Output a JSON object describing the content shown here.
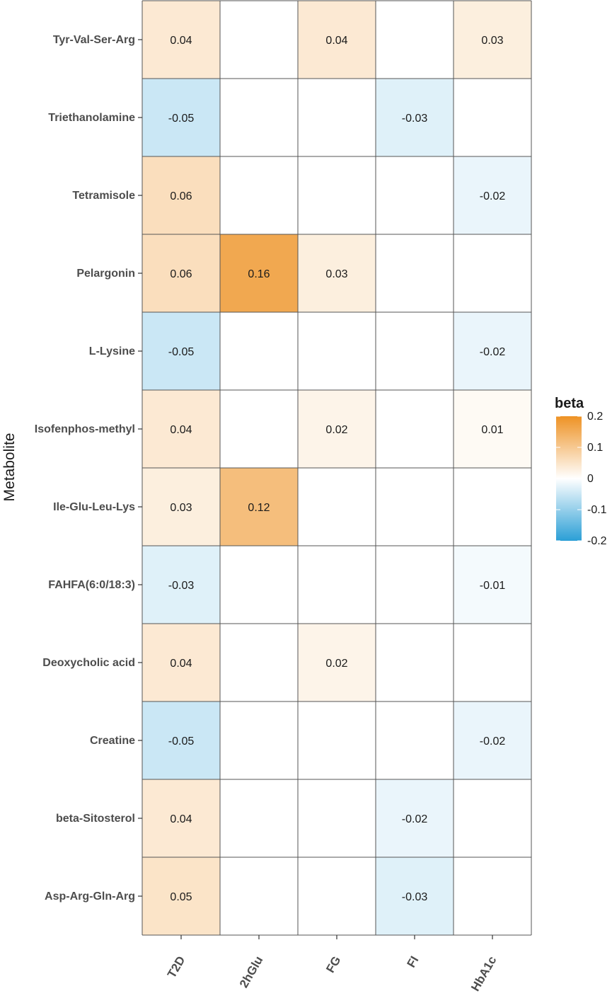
{
  "chart_data": {
    "type": "heatmap",
    "title": "",
    "xlabel": "",
    "ylabel": "Metabolite",
    "x_categories": [
      "T2D",
      "2hGlu",
      "FG",
      "FI",
      "HbA1c"
    ],
    "y_categories": [
      "Tyr-Val-Ser-Arg",
      "Triethanolamine",
      "Tetramisole",
      "Pelargonin",
      "L-Lysine",
      "Isofenphos-methyl",
      "Ile-Glu-Leu-Lys",
      "FAHFA(6:0/18:3)",
      "Deoxycholic acid",
      "Creatine",
      "beta-Sitosterol",
      "Asp-Arg-Gln-Arg"
    ],
    "cells": [
      [
        "0.04",
        "",
        "0.04",
        "",
        "0.03"
      ],
      [
        "-0.05",
        "",
        "",
        "-0.03",
        ""
      ],
      [
        "0.06",
        "",
        "",
        "",
        "-0.02"
      ],
      [
        "0.06",
        "0.16",
        "0.03",
        "",
        ""
      ],
      [
        "-0.05",
        "",
        "",
        "",
        "-0.02"
      ],
      [
        "0.04",
        "",
        "0.02",
        "",
        "0.01"
      ],
      [
        "0.03",
        "0.12",
        "",
        "",
        ""
      ],
      [
        "-0.03",
        "",
        "",
        "",
        "-0.01"
      ],
      [
        "0.04",
        "",
        "0.02",
        "",
        ""
      ],
      [
        "-0.05",
        "",
        "",
        "",
        "-0.02"
      ],
      [
        "0.04",
        "",
        "",
        "-0.02",
        ""
      ],
      [
        "0.05",
        "",
        "",
        "-0.03",
        ""
      ]
    ],
    "legend": {
      "title": "beta",
      "ticks": [
        "0.2",
        "0.1",
        "0",
        "-0.1",
        "-0.2"
      ],
      "range": [
        -0.2,
        0.2
      ],
      "low_color": "#2b9fd6",
      "mid_color": "#ffffff",
      "high_color": "#ee9224"
    },
    "grid_color": "#555555"
  }
}
